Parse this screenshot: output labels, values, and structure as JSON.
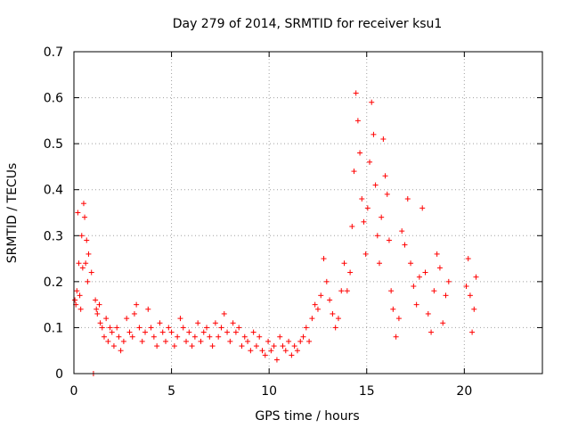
{
  "page": {
    "title": "Day 279 of 2014, SRMTID for receiver ksu1"
  },
  "chart_data": {
    "type": "scatter",
    "title": "Day 279 of 2014, SRMTID for receiver ksu1",
    "xlabel": "GPS time / hours",
    "ylabel": "SRMTID / TECUs",
    "xlim": [
      0,
      24
    ],
    "ylim": [
      0,
      0.7
    ],
    "x_ticks": [
      0,
      5,
      10,
      15,
      20
    ],
    "y_ticks": [
      0,
      0.1,
      0.2,
      0.3,
      0.4,
      0.5,
      0.6,
      0.7
    ],
    "x_tick_labels": [
      "0",
      "5",
      "10",
      "15",
      "20"
    ],
    "y_tick_labels": [
      "0",
      "0.1",
      "0.2",
      "0.3",
      "0.4",
      "0.5",
      "0.6",
      "0.7"
    ],
    "grid": true,
    "marker": "+",
    "series": [
      {
        "name": "SRMTID",
        "color": "#ff0000",
        "points": [
          {
            "x": 0.05,
            "y": 0.16
          },
          {
            "x": 0.1,
            "y": 0.15
          },
          {
            "x": 0.15,
            "y": 0.18
          },
          {
            "x": 0.2,
            "y": 0.35
          },
          {
            "x": 0.25,
            "y": 0.24
          },
          {
            "x": 0.3,
            "y": 0.17
          },
          {
            "x": 0.35,
            "y": 0.14
          },
          {
            "x": 0.4,
            "y": 0.3
          },
          {
            "x": 0.45,
            "y": 0.23
          },
          {
            "x": 0.5,
            "y": 0.37
          },
          {
            "x": 0.55,
            "y": 0.34
          },
          {
            "x": 0.6,
            "y": 0.24
          },
          {
            "x": 0.65,
            "y": 0.29
          },
          {
            "x": 0.7,
            "y": 0.2
          },
          {
            "x": 0.75,
            "y": 0.26
          },
          {
            "x": 0.9,
            "y": 0.22
          },
          {
            "x": 1.0,
            "y": 0.0
          },
          {
            "x": 1.1,
            "y": 0.16
          },
          {
            "x": 1.15,
            "y": 0.14
          },
          {
            "x": 1.2,
            "y": 0.13
          },
          {
            "x": 1.3,
            "y": 0.15
          },
          {
            "x": 1.35,
            "y": 0.11
          },
          {
            "x": 1.45,
            "y": 0.1
          },
          {
            "x": 1.55,
            "y": 0.08
          },
          {
            "x": 1.65,
            "y": 0.12
          },
          {
            "x": 1.75,
            "y": 0.07
          },
          {
            "x": 1.85,
            "y": 0.1
          },
          {
            "x": 1.95,
            "y": 0.09
          },
          {
            "x": 2.05,
            "y": 0.06
          },
          {
            "x": 2.2,
            "y": 0.1
          },
          {
            "x": 2.3,
            "y": 0.08
          },
          {
            "x": 2.4,
            "y": 0.05
          },
          {
            "x": 2.55,
            "y": 0.07
          },
          {
            "x": 2.7,
            "y": 0.12
          },
          {
            "x": 2.85,
            "y": 0.09
          },
          {
            "x": 3.0,
            "y": 0.08
          },
          {
            "x": 3.1,
            "y": 0.13
          },
          {
            "x": 3.2,
            "y": 0.15
          },
          {
            "x": 3.35,
            "y": 0.1
          },
          {
            "x": 3.5,
            "y": 0.07
          },
          {
            "x": 3.65,
            "y": 0.09
          },
          {
            "x": 3.8,
            "y": 0.14
          },
          {
            "x": 3.95,
            "y": 0.1
          },
          {
            "x": 4.1,
            "y": 0.08
          },
          {
            "x": 4.25,
            "y": 0.06
          },
          {
            "x": 4.4,
            "y": 0.11
          },
          {
            "x": 4.55,
            "y": 0.09
          },
          {
            "x": 4.7,
            "y": 0.07
          },
          {
            "x": 4.85,
            "y": 0.1
          },
          {
            "x": 5.0,
            "y": 0.09
          },
          {
            "x": 5.15,
            "y": 0.06
          },
          {
            "x": 5.3,
            "y": 0.08
          },
          {
            "x": 5.45,
            "y": 0.12
          },
          {
            "x": 5.6,
            "y": 0.1
          },
          {
            "x": 5.75,
            "y": 0.07
          },
          {
            "x": 5.9,
            "y": 0.09
          },
          {
            "x": 6.05,
            "y": 0.06
          },
          {
            "x": 6.2,
            "y": 0.08
          },
          {
            "x": 6.35,
            "y": 0.11
          },
          {
            "x": 6.5,
            "y": 0.07
          },
          {
            "x": 6.65,
            "y": 0.09
          },
          {
            "x": 6.8,
            "y": 0.1
          },
          {
            "x": 6.95,
            "y": 0.08
          },
          {
            "x": 7.1,
            "y": 0.06
          },
          {
            "x": 7.25,
            "y": 0.11
          },
          {
            "x": 7.4,
            "y": 0.08
          },
          {
            "x": 7.55,
            "y": 0.1
          },
          {
            "x": 7.7,
            "y": 0.13
          },
          {
            "x": 7.85,
            "y": 0.09
          },
          {
            "x": 8.0,
            "y": 0.07
          },
          {
            "x": 8.15,
            "y": 0.11
          },
          {
            "x": 8.3,
            "y": 0.09
          },
          {
            "x": 8.45,
            "y": 0.1
          },
          {
            "x": 8.6,
            "y": 0.06
          },
          {
            "x": 8.75,
            "y": 0.08
          },
          {
            "x": 8.9,
            "y": 0.07
          },
          {
            "x": 9.05,
            "y": 0.05
          },
          {
            "x": 9.2,
            "y": 0.09
          },
          {
            "x": 9.35,
            "y": 0.06
          },
          {
            "x": 9.5,
            "y": 0.08
          },
          {
            "x": 9.65,
            "y": 0.05
          },
          {
            "x": 9.8,
            "y": 0.04
          },
          {
            "x": 9.95,
            "y": 0.07
          },
          {
            "x": 10.1,
            "y": 0.05
          },
          {
            "x": 10.25,
            "y": 0.06
          },
          {
            "x": 10.4,
            "y": 0.03
          },
          {
            "x": 10.55,
            "y": 0.08
          },
          {
            "x": 10.7,
            "y": 0.06
          },
          {
            "x": 10.85,
            "y": 0.05
          },
          {
            "x": 11.0,
            "y": 0.07
          },
          {
            "x": 11.15,
            "y": 0.04
          },
          {
            "x": 11.3,
            "y": 0.06
          },
          {
            "x": 11.45,
            "y": 0.05
          },
          {
            "x": 11.6,
            "y": 0.07
          },
          {
            "x": 11.75,
            "y": 0.08
          },
          {
            "x": 11.9,
            "y": 0.1
          },
          {
            "x": 12.05,
            "y": 0.07
          },
          {
            "x": 12.2,
            "y": 0.12
          },
          {
            "x": 12.35,
            "y": 0.15
          },
          {
            "x": 12.5,
            "y": 0.14
          },
          {
            "x": 12.65,
            "y": 0.17
          },
          {
            "x": 12.8,
            "y": 0.25
          },
          {
            "x": 12.95,
            "y": 0.2
          },
          {
            "x": 13.1,
            "y": 0.16
          },
          {
            "x": 13.25,
            "y": 0.13
          },
          {
            "x": 13.4,
            "y": 0.1
          },
          {
            "x": 13.55,
            "y": 0.12
          },
          {
            "x": 13.7,
            "y": 0.18
          },
          {
            "x": 13.85,
            "y": 0.24
          },
          {
            "x": 14.0,
            "y": 0.18
          },
          {
            "x": 14.15,
            "y": 0.22
          },
          {
            "x": 14.25,
            "y": 0.32
          },
          {
            "x": 14.35,
            "y": 0.44
          },
          {
            "x": 14.45,
            "y": 0.61
          },
          {
            "x": 14.55,
            "y": 0.55
          },
          {
            "x": 14.65,
            "y": 0.48
          },
          {
            "x": 14.75,
            "y": 0.38
          },
          {
            "x": 14.85,
            "y": 0.33
          },
          {
            "x": 14.95,
            "y": 0.26
          },
          {
            "x": 15.05,
            "y": 0.36
          },
          {
            "x": 15.15,
            "y": 0.46
          },
          {
            "x": 15.25,
            "y": 0.59
          },
          {
            "x": 15.35,
            "y": 0.52
          },
          {
            "x": 15.45,
            "y": 0.41
          },
          {
            "x": 15.55,
            "y": 0.3
          },
          {
            "x": 15.65,
            "y": 0.24
          },
          {
            "x": 15.75,
            "y": 0.34
          },
          {
            "x": 15.85,
            "y": 0.51
          },
          {
            "x": 15.95,
            "y": 0.43
          },
          {
            "x": 16.05,
            "y": 0.39
          },
          {
            "x": 16.15,
            "y": 0.29
          },
          {
            "x": 16.25,
            "y": 0.18
          },
          {
            "x": 16.35,
            "y": 0.14
          },
          {
            "x": 16.5,
            "y": 0.08
          },
          {
            "x": 16.65,
            "y": 0.12
          },
          {
            "x": 16.8,
            "y": 0.31
          },
          {
            "x": 16.95,
            "y": 0.28
          },
          {
            "x": 17.1,
            "y": 0.38
          },
          {
            "x": 17.25,
            "y": 0.24
          },
          {
            "x": 17.4,
            "y": 0.19
          },
          {
            "x": 17.55,
            "y": 0.15
          },
          {
            "x": 17.7,
            "y": 0.21
          },
          {
            "x": 17.85,
            "y": 0.36
          },
          {
            "x": 18.0,
            "y": 0.22
          },
          {
            "x": 18.15,
            "y": 0.13
          },
          {
            "x": 18.3,
            "y": 0.09
          },
          {
            "x": 18.45,
            "y": 0.18
          },
          {
            "x": 18.6,
            "y": 0.26
          },
          {
            "x": 18.75,
            "y": 0.23
          },
          {
            "x": 18.9,
            "y": 0.11
          },
          {
            "x": 19.05,
            "y": 0.17
          },
          {
            "x": 19.2,
            "y": 0.2
          },
          {
            "x": 20.1,
            "y": 0.19
          },
          {
            "x": 20.2,
            "y": 0.25
          },
          {
            "x": 20.3,
            "y": 0.17
          },
          {
            "x": 20.4,
            "y": 0.09
          },
          {
            "x": 20.5,
            "y": 0.14
          },
          {
            "x": 20.6,
            "y": 0.21
          }
        ]
      }
    ]
  }
}
